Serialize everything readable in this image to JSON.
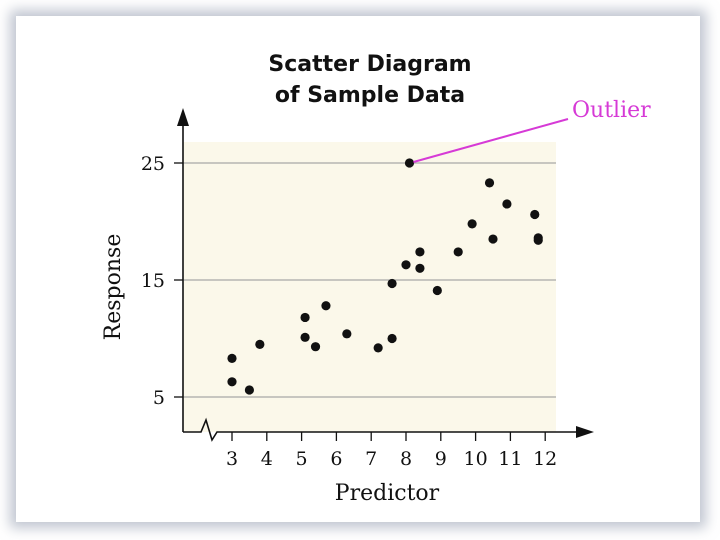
{
  "chart_data": {
    "type": "scatter",
    "title": "Scatter Diagram",
    "subtitle": "of Sample Data",
    "xlabel": "Predictor",
    "ylabel": "Response",
    "xlim": [
      2,
      12.3
    ],
    "ylim": [
      2,
      28
    ],
    "x_ticks": [
      3,
      4,
      5,
      6,
      7,
      8,
      9,
      10,
      11,
      12
    ],
    "y_ticks": [
      5,
      15,
      25
    ],
    "grid": "horizontal",
    "axis_break": "x",
    "points": [
      {
        "x": 3.0,
        "y": 8.3
      },
      {
        "x": 3.0,
        "y": 6.3
      },
      {
        "x": 3.5,
        "y": 5.6
      },
      {
        "x": 3.8,
        "y": 9.5
      },
      {
        "x": 5.1,
        "y": 11.8
      },
      {
        "x": 5.1,
        "y": 10.1
      },
      {
        "x": 5.4,
        "y": 9.3
      },
      {
        "x": 5.7,
        "y": 12.8
      },
      {
        "x": 6.3,
        "y": 10.4
      },
      {
        "x": 7.2,
        "y": 9.2
      },
      {
        "x": 7.6,
        "y": 10.0
      },
      {
        "x": 7.6,
        "y": 14.7
      },
      {
        "x": 8.0,
        "y": 16.3
      },
      {
        "x": 8.4,
        "y": 17.4
      },
      {
        "x": 8.4,
        "y": 16.0
      },
      {
        "x": 8.9,
        "y": 14.1
      },
      {
        "x": 9.5,
        "y": 17.4
      },
      {
        "x": 9.9,
        "y": 19.8
      },
      {
        "x": 10.4,
        "y": 23.3
      },
      {
        "x": 10.5,
        "y": 18.5
      },
      {
        "x": 10.9,
        "y": 21.5
      },
      {
        "x": 11.7,
        "y": 20.6
      },
      {
        "x": 11.8,
        "y": 18.6
      },
      {
        "x": 11.8,
        "y": 18.4
      },
      {
        "x": 8.1,
        "y": 25.0
      }
    ],
    "annotation": {
      "text": "Outlier",
      "point": {
        "x": 8.1,
        "y": 25.0
      },
      "color": "#d63ad6"
    },
    "colors": {
      "plot_background": "#fbf8ea",
      "points": "#111111",
      "grid": "#a8a8a8",
      "annotation": "#d63ad6"
    }
  }
}
